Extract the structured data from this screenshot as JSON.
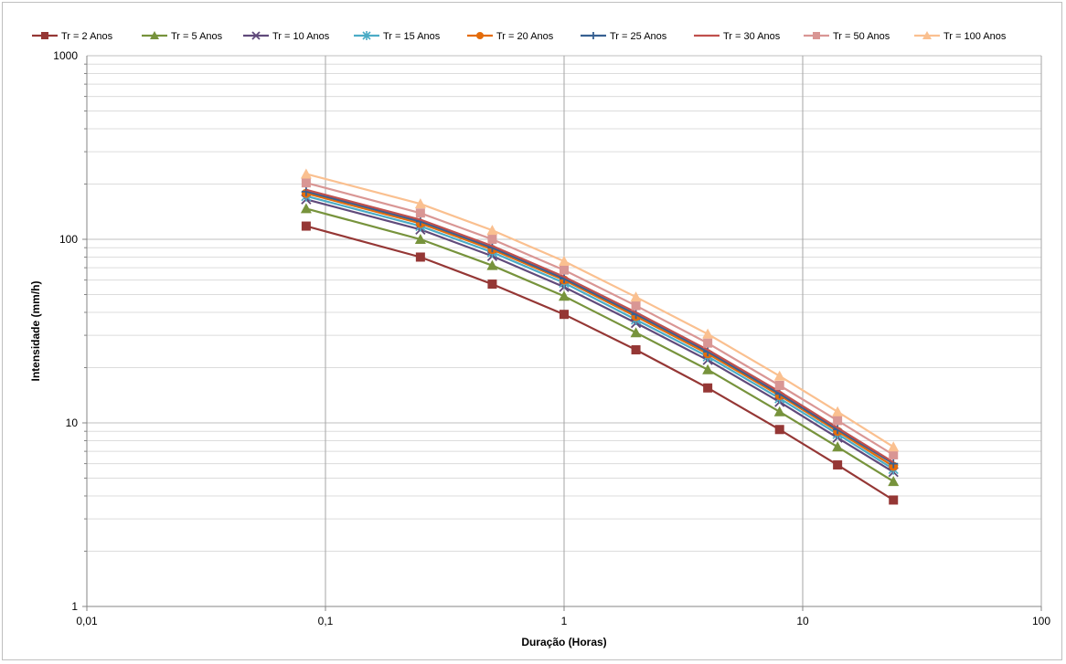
{
  "chart_data": {
    "type": "line",
    "title": "",
    "xlabel": "Duração (Horas)",
    "ylabel": "Intensidade (mm/h)",
    "x_scale": "log",
    "y_scale": "log",
    "xlim": [
      0.01,
      100
    ],
    "ylim": [
      1,
      1000
    ],
    "x_tick_labels": [
      "0,01",
      "0,1",
      "1",
      "10",
      "100"
    ],
    "y_tick_labels": [
      "1",
      "10",
      "100",
      "1000"
    ],
    "grid": true,
    "legend_position": "top",
    "x": [
      0.083,
      0.25,
      0.5,
      1,
      2,
      4,
      8,
      14,
      24
    ],
    "series": [
      {
        "name": "Tr = 2 Anos",
        "color": "#953735",
        "marker": "square",
        "values": [
          118,
          80,
          57,
          39,
          25,
          15.5,
          9.2,
          5.9,
          3.8
        ]
      },
      {
        "name": "Tr = 5 Anos",
        "color": "#77933c",
        "marker": "triangle",
        "values": [
          147,
          100,
          72,
          49,
          31,
          19.5,
          11.5,
          7.4,
          4.8
        ]
      },
      {
        "name": "Tr = 10 Anos",
        "color": "#604a7b",
        "marker": "x",
        "values": [
          165,
          113,
          81,
          55,
          35,
          22,
          13,
          8.3,
          5.4
        ]
      },
      {
        "name": "Tr = 15 Anos",
        "color": "#4bacc6",
        "marker": "star",
        "values": [
          172,
          118,
          85,
          58,
          36.5,
          23,
          13.6,
          8.7,
          5.6
        ]
      },
      {
        "name": "Tr = 20 Anos",
        "color": "#e46c0a",
        "marker": "circle",
        "values": [
          178,
          122,
          88,
          60,
          38,
          23.8,
          14.1,
          9,
          5.8
        ]
      },
      {
        "name": "Tr = 25 Anos",
        "color": "#376092",
        "marker": "plus",
        "values": [
          182,
          125,
          90,
          61,
          39,
          24.4,
          14.4,
          9.2,
          6
        ]
      },
      {
        "name": "Tr = 30 Anos",
        "color": "#c0504d",
        "marker": "none",
        "values": [
          186,
          128,
          92,
          62.5,
          40,
          25,
          14.8,
          9.4,
          6.1
        ]
      },
      {
        "name": "Tr = 50 Anos",
        "color": "#d99694",
        "marker": "square",
        "values": [
          203,
          139,
          100,
          68,
          43.5,
          27.2,
          16,
          10.3,
          6.7
        ]
      },
      {
        "name": "Tr = 100 Anos",
        "color": "#fac090",
        "marker": "triangle",
        "values": [
          227,
          156,
          112,
          76,
          48.5,
          30.5,
          18,
          11.5,
          7.4
        ]
      }
    ]
  }
}
